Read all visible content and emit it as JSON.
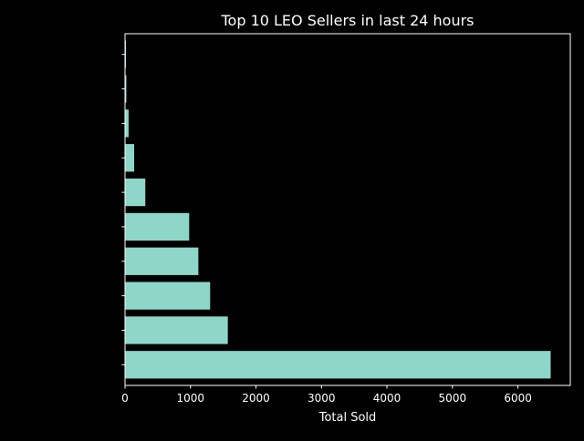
{
  "chart_data": {
    "type": "bar",
    "orientation": "horizontal",
    "title": "Top 10 LEO Sellers in last 24 hours",
    "xlabel": "Total Sold",
    "ylabel": "",
    "xlim": [
      0,
      6800
    ],
    "x_ticks": [
      0,
      1000,
      2000,
      3000,
      4000,
      5000,
      6000
    ],
    "categories": [
      "",
      "",
      "",
      "",
      "",
      "",
      "",
      "",
      "",
      ""
    ],
    "values": [
      6500,
      1570,
      1300,
      1120,
      980,
      310,
      140,
      55,
      20,
      15
    ],
    "grid": false,
    "legend": "none",
    "colors": {
      "background": "#000000",
      "bar": "#8dd6c8",
      "axis": "#ffffff",
      "text": "#ffffff"
    }
  }
}
